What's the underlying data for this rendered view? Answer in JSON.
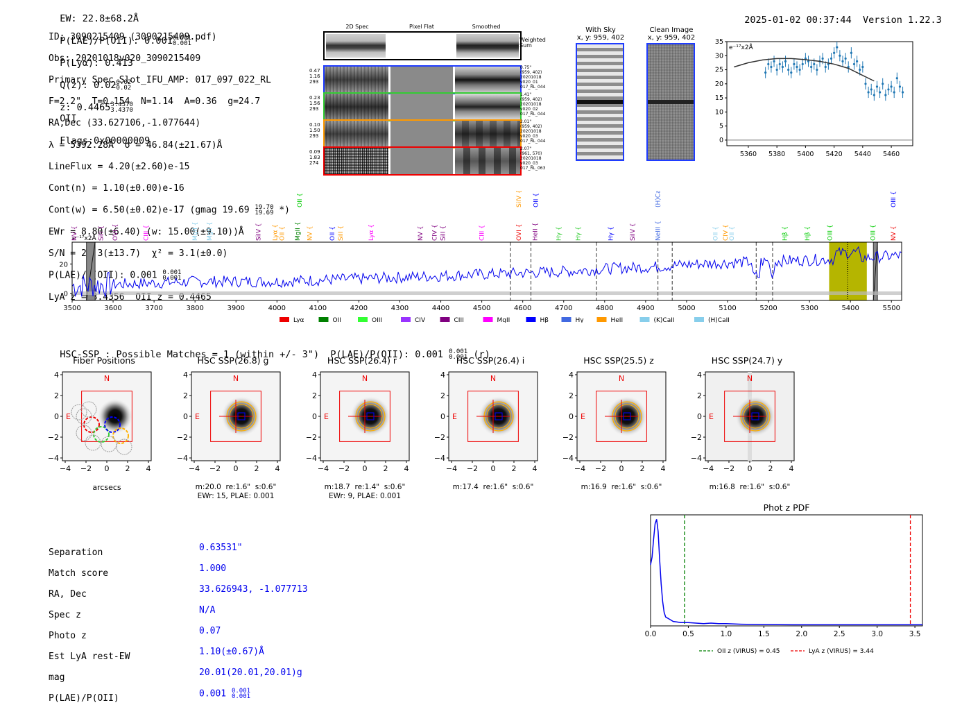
{
  "header": {
    "ew": "EW: 22.8±68.2Å",
    "plae": "P(LAE)/P(OII): 0.001",
    "plae_hi": "0.001",
    "plae_lo": "0.001",
    "plya": "P(Lyα): 0.413",
    "qz": "Q(z): 0.02",
    "qz_hi": "0.02",
    "qz_lo": "0.02",
    "z": "z: 0.4465",
    "z_hi": "3.4370",
    "z_lo": "3.4370",
    "z_line": "OII",
    "flags": "Flags:0x00000009",
    "datetime": "2025-01-02 00:37:44",
    "version": "Version 1.22.3"
  },
  "info": {
    "id": "ID: 3090215409 (3090215409.pdf)",
    "obs": "Obs: 20201018v020_3090215409",
    "primary": "Primary Spec_Slot_IFU_AMP: 017_097_022_RL",
    "params": "F=2.2\"  T=0.154  N=1.14  A=0.36  g=24.7",
    "radec": "RA,Dec (33.627106,-1.077644)",
    "lambda": "λ = 5392.28Å  σ = 46.84(±21.67)Å",
    "lineflux": "LineFlux = 4.20(±2.60)e-15",
    "contn": "Cont(n) = 1.10(±0.00)e-16",
    "contw": "Cont(w) = 6.50(±0.02)e-17 (gmag 19.69",
    "contw_hi": "19.70",
    "contw_lo": "19.69",
    "contw_end": " *)",
    "ewr": "EWr = 8.80(±6.40) (w: 15.00(±9.10))Å",
    "sn": "S/N = 22.3(±13.7)  χ² = 3.1(±0.0)",
    "plae": "P(LAE)/P(OII): 0.001",
    "plae_hi": "0.001",
    "plae_lo": "0.001",
    "lyaz": "LyA z = 3.4356  OII z = 0.4465"
  },
  "cutouts": {
    "col_titles": [
      "2D Spec",
      "Pixel Flat",
      "Smoothed"
    ],
    "weighted_sum": "Weighted Sum",
    "rows": [
      {
        "left": [
          "0.47",
          "1.16",
          "293"
        ],
        "right": [
          "0.75\"",
          "(959, 402)",
          "20201018",
          "v020_01",
          "017_RL_044"
        ],
        "color": "#1f3cff"
      },
      {
        "left": [
          "0.23",
          "1.56",
          "293"
        ],
        "right": [
          "1.41\"",
          "(959, 402)",
          "20201018",
          "v020_02",
          "017_RL_044"
        ],
        "color": "#33cc33"
      },
      {
        "left": [
          "0.10",
          "1.50",
          "293"
        ],
        "right": [
          "2.01\"",
          "(959, 402)",
          "20201018",
          "v020_03",
          "017_RL_044"
        ],
        "color": "#ff9900"
      },
      {
        "left": [
          "0.09",
          "1.83",
          "274"
        ],
        "right": [
          "2.07\"",
          "(961, 570)",
          "20201018",
          "v020_03",
          "017_RL_063"
        ],
        "color": "#ee0000"
      }
    ]
  },
  "sky_panels": {
    "with_sky": {
      "title": "With Sky",
      "coords": "x, y: 959, 402"
    },
    "clean": {
      "title": "Clean Image",
      "coords": "x, y: 959, 402"
    }
  },
  "chart_data": [
    {
      "name": "zoom-spectrum",
      "type": "scatter",
      "ylabel_unit": "e⁻¹⁷x2Å",
      "xlim": [
        5345,
        5475
      ],
      "ylim": [
        -2,
        35
      ],
      "xticks": [
        5360,
        5380,
        5400,
        5420,
        5440,
        5460
      ],
      "yticks": [
        0,
        5,
        10,
        15,
        20,
        25,
        30,
        35
      ],
      "x": [
        5372,
        5374,
        5376,
        5378,
        5380,
        5382,
        5384,
        5386,
        5388,
        5390,
        5392,
        5394,
        5396,
        5398,
        5400,
        5402,
        5404,
        5406,
        5408,
        5410,
        5412,
        5414,
        5416,
        5418,
        5420,
        5422,
        5424,
        5426,
        5428,
        5430,
        5432,
        5434,
        5436,
        5438,
        5440,
        5442,
        5444,
        5446,
        5448,
        5450,
        5452,
        5454,
        5456,
        5458,
        5460,
        5462,
        5464,
        5466,
        5468
      ],
      "y": [
        24,
        27,
        26,
        28,
        25,
        27,
        26,
        28,
        25,
        24,
        27,
        26,
        25,
        27,
        29,
        28,
        26,
        27,
        25,
        28,
        29,
        26,
        27,
        29,
        31,
        33,
        30,
        28,
        29,
        26,
        31,
        27,
        28,
        25,
        26,
        20,
        17,
        18,
        16,
        19,
        17,
        20,
        16,
        18,
        19,
        17,
        22,
        19,
        17
      ],
      "err": [
        2,
        2,
        2,
        2,
        2,
        2,
        2,
        2,
        2,
        2,
        2,
        2,
        2,
        2,
        2,
        2,
        2,
        2,
        2,
        2,
        2,
        2,
        2,
        2,
        2,
        2,
        2,
        2,
        2,
        2,
        2,
        2,
        2,
        2,
        2,
        2,
        2,
        2,
        2,
        2,
        2,
        2,
        2,
        2,
        2,
        2,
        2,
        2,
        2
      ],
      "fit_x": [
        5350,
        5360,
        5370,
        5380,
        5390,
        5400,
        5410,
        5420,
        5430,
        5440,
        5448
      ],
      "fit_y": [
        26,
        27.5,
        28.5,
        29,
        29,
        28.6,
        28,
        27,
        25.5,
        23,
        21
      ]
    },
    {
      "name": "full-spectrum",
      "type": "line",
      "ylabel_unit": "e⁻¹⁷x2Å",
      "xlim": [
        3500,
        5525
      ],
      "ylim": [
        -5,
        35
      ],
      "xticks": [
        3500,
        3600,
        3700,
        3800,
        3900,
        4000,
        4100,
        4200,
        4300,
        4400,
        4500,
        4600,
        4700,
        4800,
        4900,
        5000,
        5100,
        5200,
        5300,
        5400,
        5500
      ],
      "yticks": [
        0,
        20
      ],
      "baseline": [
        5,
        6,
        7,
        8,
        8,
        8,
        9,
        10,
        11,
        12,
        13,
        14,
        15,
        17,
        18,
        20,
        21,
        22,
        23,
        24,
        26
      ],
      "line_markers": [
        {
          "label": "NV",
          "x": 3505,
          "color": "#800080",
          "row": 1
        },
        {
          "label": "SiII",
          "x": 3570,
          "color": "#800080",
          "row": 1
        },
        {
          "label": "OVI",
          "x": 3605,
          "color": "#800080",
          "row": 1
        },
        {
          "label": "CIII",
          "x": 3680,
          "color": "#ff00ff",
          "row": 1
        },
        {
          "label": "MgII",
          "x": 3800,
          "color": "#87ceeb",
          "row": 1
        },
        {
          "label": "MgII",
          "x": 3835,
          "color": "#87ceeb",
          "row": 1
        },
        {
          "label": "SiIV",
          "x": 3955,
          "color": "#800080",
          "row": 1
        },
        {
          "label": "Lyα",
          "x": 3995,
          "color": "#ff9900",
          "row": 1
        },
        {
          "label": "OII",
          "x": 4012,
          "color": "#ff9900",
          "row": 1
        },
        {
          "label": "MgII",
          "x": 4050,
          "color": "#008000",
          "row": 1
        },
        {
          "label": "OII",
          "x": 4055,
          "color": "#00cc00",
          "row": 0
        },
        {
          "label": "NV",
          "x": 4080,
          "color": "#ff9900",
          "row": 1
        },
        {
          "label": "OII",
          "x": 4135,
          "color": "#0000ff",
          "row": 1
        },
        {
          "label": "SiII",
          "x": 4155,
          "color": "#ff9900",
          "row": 1
        },
        {
          "label": "Lyα",
          "x": 4230,
          "color": "#ff00ff",
          "row": 1
        },
        {
          "label": "NV",
          "x": 4350,
          "color": "#800080",
          "row": 1
        },
        {
          "label": "CIV",
          "x": 4385,
          "color": "#800080",
          "row": 1
        },
        {
          "label": "SiII",
          "x": 4405,
          "color": "#800080",
          "row": 1
        },
        {
          "label": "CIII",
          "x": 4500,
          "color": "#ff00ff",
          "row": 1
        },
        {
          "label": "SiIV",
          "x": 4590,
          "color": "#ff9900",
          "row": 0
        },
        {
          "label": "OVI",
          "x": 4590,
          "color": "#ee0000",
          "row": 1
        },
        {
          "label": "OII",
          "x": 4632,
          "color": "#0000ff",
          "row": 0
        },
        {
          "label": "HeII",
          "x": 4630,
          "color": "#800080",
          "row": 1
        },
        {
          "label": "Hγ",
          "x": 4688,
          "color": "#33cc33",
          "row": 1
        },
        {
          "label": "Hγ",
          "x": 4735,
          "color": "#33cc33",
          "row": 1
        },
        {
          "label": "Hγ",
          "x": 4815,
          "color": "#0000ff",
          "row": 1
        },
        {
          "label": "SiIV",
          "x": 4868,
          "color": "#800080",
          "row": 1
        },
        {
          "label": "(H)CaII",
          "x": 4930,
          "color": "#4169e1",
          "row": 0
        },
        {
          "label": "NeIII",
          "x": 4930,
          "color": "#4169e1",
          "row": 1
        },
        {
          "label": "OII",
          "x": 5070,
          "color": "#87ceeb",
          "row": 1
        },
        {
          "label": "CIV",
          "x": 5095,
          "color": "#ff9900",
          "row": 1
        },
        {
          "label": "OII",
          "x": 5110,
          "color": "#87ceeb",
          "row": 1
        },
        {
          "label": "Hβ",
          "x": 5240,
          "color": "#00cc00",
          "row": 1
        },
        {
          "label": "Hβ",
          "x": 5295,
          "color": "#00cc00",
          "row": 1
        },
        {
          "label": "OIII",
          "x": 5350,
          "color": "#00cc00",
          "row": 1
        },
        {
          "label": "OIII",
          "x": 5455,
          "color": "#00cc00",
          "row": 1
        },
        {
          "label": "NV",
          "x": 5505,
          "color": "#ee0000",
          "row": 1
        },
        {
          "label": "OIII",
          "x": 5505,
          "color": "#0000ff",
          "row": 0
        }
      ],
      "dashed_lines": [
        4570,
        4620,
        4780,
        4930,
        4965,
        5170,
        5210
      ],
      "highlight_band": [
        5348,
        5440
      ],
      "dotted_line": 5393,
      "masks": [
        [
          3535,
          3556
        ],
        [
          5456,
          5466
        ]
      ],
      "legend": [
        {
          "label": "Lyα",
          "color": "#ee0000"
        },
        {
          "label": "OII",
          "color": "#008000"
        },
        {
          "label": "OIII",
          "color": "#33ff33"
        },
        {
          "label": "CIV",
          "color": "#9933ff"
        },
        {
          "label": "CIII",
          "color": "#800080"
        },
        {
          "label": "MgII",
          "color": "#ff00ff"
        },
        {
          "label": "Hβ",
          "color": "#0000ff"
        },
        {
          "label": "Hγ",
          "color": "#4169e1"
        },
        {
          "label": "HeII",
          "color": "#ff9900"
        },
        {
          "label": "(K)CaII",
          "color": "#87ceeb"
        },
        {
          "label": "(H)CaII",
          "color": "#87ceeb"
        }
      ]
    },
    {
      "name": "photz-pdf",
      "type": "line",
      "title": "Phot z PDF",
      "xlim": [
        0,
        3.6
      ],
      "ylim": [
        0,
        1
      ],
      "xticks": [
        0.0,
        0.5,
        1.0,
        1.5,
        2.0,
        2.5,
        3.0,
        3.5
      ],
      "xticklabels": [
        "0.0",
        "0.5",
        "1.0",
        "1.5",
        "2.0",
        "2.5",
        "3.0",
        "3.5"
      ],
      "x": [
        0,
        0.02,
        0.04,
        0.06,
        0.08,
        0.1,
        0.12,
        0.14,
        0.16,
        0.18,
        0.2,
        0.25,
        0.3,
        0.35,
        0.4,
        0.5,
        0.6,
        0.7,
        0.8,
        0.9,
        1.0,
        1.2,
        1.5,
        2.0,
        2.5,
        3.0,
        3.5,
        3.6
      ],
      "y": [
        0.55,
        0.62,
        0.78,
        0.92,
        0.96,
        0.85,
        0.6,
        0.38,
        0.22,
        0.12,
        0.08,
        0.06,
        0.04,
        0.035,
        0.03,
        0.03,
        0.025,
        0.02,
        0.025,
        0.02,
        0.02,
        0.015,
        0.012,
        0.01,
        0.01,
        0.01,
        0.01,
        0.01
      ],
      "vlines": [
        {
          "x": 0.45,
          "color": "#008000",
          "label": "OII z (VIRUS) = 0.45"
        },
        {
          "x": 3.44,
          "color": "#ee0000",
          "label": "LyA z (VIRUS) = 3.44"
        }
      ]
    }
  ],
  "hsc": {
    "title": "HSC-SSP : Possible Matches = 1 (within +/- 3\")  P(LAE)/P(OII): 0.001",
    "title_hi": "0.001",
    "title_lo": "0.001",
    "title_end": " (r)",
    "ticks": [
      "4",
      "2",
      "0",
      "−2",
      "−4"
    ],
    "xticks": [
      "−4",
      "−2",
      "0",
      "2",
      "4"
    ],
    "north": "N",
    "east": "E",
    "fiber_title": "Fiber Positions",
    "fiber_xlabel": "arcsecs",
    "panels": [
      {
        "title": "HSC SSP(26.8) g",
        "line1": "m:20.0  re:1.6\"  s:0.6\"",
        "line2": "EWr: 15, PLAE: 0.001"
      },
      {
        "title": "HSC SSP(26.4) r",
        "line1": "m:18.7  re:1.4\"  s:0.6\"",
        "line2": "EWr: 9, PLAE: 0.001"
      },
      {
        "title": "HSC SSP(26.4) i",
        "line1": "m:17.4  re:1.6\"  s:0.6\"",
        "line2": ""
      },
      {
        "title": "HSC SSP(25.5) z",
        "line1": "m:16.9  re:1.6\"  s:0.6\"",
        "line2": ""
      },
      {
        "title": "HSC SSP(24.7) y",
        "line1": "m:16.8  re:1.6\"  s:0.6\"",
        "line2": ""
      }
    ]
  },
  "match": {
    "labels": [
      "Separation",
      "Match score",
      "RA, Dec",
      "Spec z",
      "Photo z",
      "Est LyA rest-EW",
      "mag",
      "P(LAE)/P(OII)"
    ],
    "values": [
      "0.63531\"",
      "1.000",
      "33.626943, -1.077713",
      "N/A",
      "0.07",
      "1.10(±0.67)Å",
      "20.01(20.01,20.01)g",
      "0.001"
    ],
    "plae_hi": "0.001",
    "plae_lo": "0.001"
  }
}
